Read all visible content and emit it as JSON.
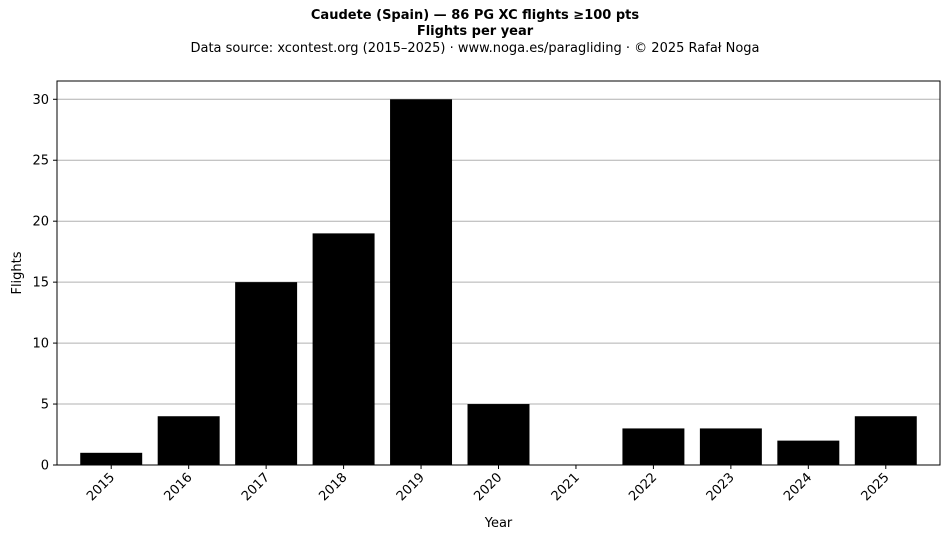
{
  "chart_data": {
    "type": "bar",
    "title": "Caudete (Spain)  —  86 PG XC flights ≥100 pts",
    "subtitle": "Flights per year",
    "source_note": "Data source: xcontest.org (2015–2025)  ·  www.noga.es/paragliding  ·  © 2025 Rafał Noga",
    "xlabel": "Year",
    "ylabel": "Flights",
    "categories": [
      "2015",
      "2016",
      "2017",
      "2018",
      "2019",
      "2020",
      "2021",
      "2022",
      "2023",
      "2024",
      "2025"
    ],
    "values": [
      1,
      4,
      15,
      19,
      30,
      5,
      0,
      3,
      3,
      2,
      4
    ],
    "ylim": [
      0,
      31.5
    ],
    "yticks": [
      0,
      5,
      10,
      15,
      20,
      25,
      30
    ],
    "grid": "y",
    "bar_color": "#000000",
    "grid_color": "#b0b0b0"
  }
}
